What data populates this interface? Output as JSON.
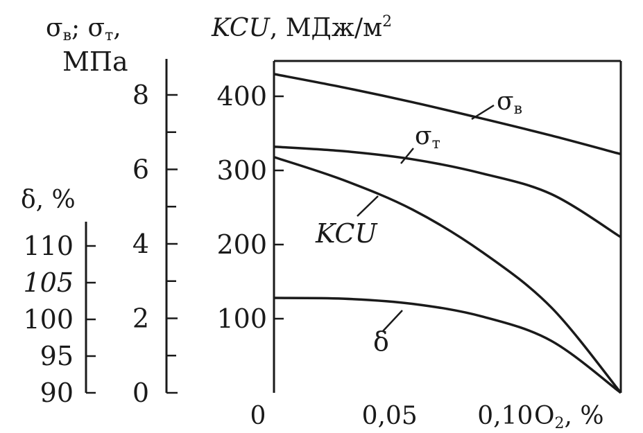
{
  "chart_data": {
    "type": "line",
    "x": [
      0,
      0.03,
      0.06,
      0.09,
      0.12,
      0.15
    ],
    "xlim": [
      0,
      0.15
    ],
    "xticks": [
      "0",
      "0,05",
      "0,10"
    ],
    "xlabel": "O",
    "xlabel_sub": "2",
    "xlabel_unit": ", %",
    "axes": {
      "strength": {
        "label_line1": "σ",
        "label_sub1": "в",
        "label_mid": "; σ",
        "label_sub2": "т",
        "label_end": ",",
        "unit": "МПа",
        "ticks": [
          "0",
          "2",
          "4",
          "6",
          "8"
        ]
      },
      "kcu": {
        "label": "KCU",
        "unit_text": ", МДж/м",
        "unit_sup": "2",
        "ticks": [
          "100",
          "200",
          "300",
          "400"
        ],
        "ylim": [
          0,
          450
        ]
      },
      "delta": {
        "label": "δ, %",
        "ticks": [
          "90",
          "95",
          "100",
          "105",
          "110"
        ]
      }
    },
    "series": [
      {
        "name": "σ",
        "name_sub": "в",
        "values": [
          430,
          412,
          392,
          370,
          347,
          322
        ]
      },
      {
        "name": "σ",
        "name_sub": "т",
        "values": [
          332,
          326,
          315,
          296,
          268,
          210
        ]
      },
      {
        "name": "KCU",
        "values": [
          318,
          287,
          247,
          190,
          115,
          0
        ]
      },
      {
        "name": "δ",
        "values": [
          128,
          127,
          120,
          103,
          70,
          0
        ]
      }
    ]
  }
}
